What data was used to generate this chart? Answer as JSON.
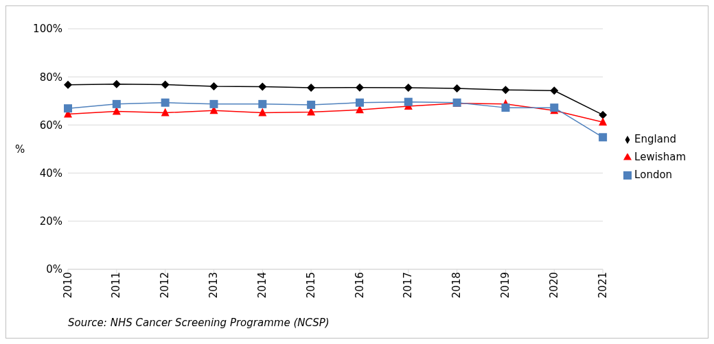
{
  "chart_data": {
    "type": "line",
    "ylabel": "%",
    "categories": [
      "2010",
      "2011",
      "2012",
      "2013",
      "2014",
      "2015",
      "2016",
      "2017",
      "2018",
      "2019",
      "2020",
      "2021"
    ],
    "series": [
      {
        "name": "England",
        "color": "#000000",
        "marker": "diamond",
        "values": [
          76.7,
          77,
          76.8,
          76.1,
          75.9,
          75.5,
          75.6,
          75.5,
          75.2,
          74.6,
          74.3,
          64.2
        ]
      },
      {
        "name": "Lewisham",
        "color": "#ff0000",
        "marker": "triangle",
        "values": [
          64.5,
          65.7,
          65.1,
          66,
          65.1,
          65.4,
          66.3,
          67.8,
          69,
          68.7,
          66,
          61.2
        ]
      },
      {
        "name": "London",
        "color": "#4f81bd",
        "marker": "square",
        "values": [
          66.9,
          68.7,
          69.3,
          68.7,
          68.7,
          68.4,
          69.3,
          69.6,
          69.3,
          67.2,
          67.2,
          54.9
        ]
      }
    ],
    "ylim": [
      0,
      100
    ],
    "yticks": [
      {
        "value": 0,
        "label": "0%"
      },
      {
        "value": 20,
        "label": "20%"
      },
      {
        "value": 40,
        "label": "40%"
      },
      {
        "value": 60,
        "label": "60%"
      },
      {
        "value": 80,
        "label": "80%"
      },
      {
        "value": 100,
        "label": "100%"
      }
    ],
    "grid": "y",
    "legend": "right",
    "line_style": "solid",
    "annotations": [
      "Source: NHS Cancer Screening Programme (NCSP)"
    ]
  }
}
